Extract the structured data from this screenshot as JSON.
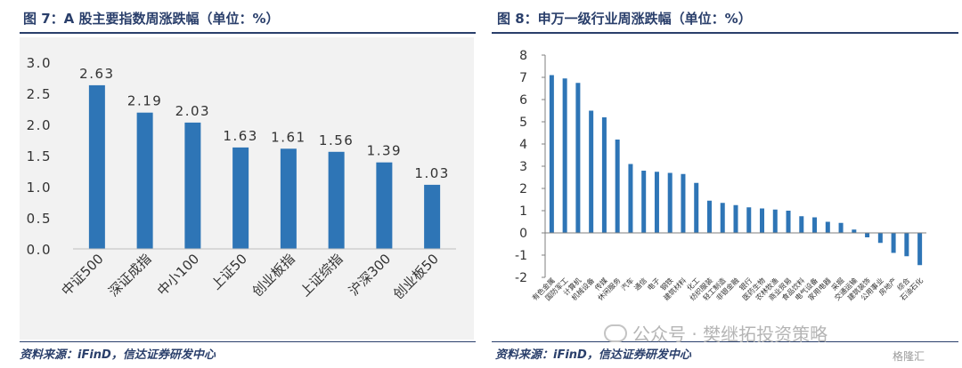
{
  "chart_data": [
    {
      "type": "bar",
      "title": "图 7：A 股主要指数周涨跌幅（单位：%）",
      "categories": [
        "中证500",
        "深证成指",
        "中小100",
        "上证50",
        "创业板指",
        "上证综指",
        "沪深300",
        "创业板50"
      ],
      "values": [
        2.63,
        2.19,
        2.03,
        1.63,
        1.61,
        1.56,
        1.39,
        1.03
      ],
      "value_labels": [
        "2.63",
        "2.19",
        "2.03",
        "1.63",
        "1.61",
        "1.56",
        "1.39",
        "1.03"
      ],
      "ylim": [
        0,
        3.0
      ],
      "yticks": [
        "0.0",
        "0.5",
        "1.0",
        "1.5",
        "2.0",
        "2.5",
        "3.0"
      ],
      "bar_color": "#2e75b6",
      "source": "资料来源：iFinD，信达证券研发中心"
    },
    {
      "type": "bar",
      "title": "图 8：申万一级行业周涨跌幅（单位：%）",
      "categories": [
        "有色金属",
        "国防军工",
        "计算机",
        "机械设备",
        "传媒",
        "休闲服务",
        "汽车",
        "通信",
        "电子",
        "钢铁",
        "建筑材料",
        "化工",
        "纺织服装",
        "轻工制造",
        "非银金融",
        "银行",
        "医药生物",
        "农林牧渔",
        "商业贸易",
        "食品饮料",
        "电气设备",
        "家用电器",
        "采掘",
        "交通运输",
        "建筑装饰",
        "公用事业",
        "房地产",
        "综合",
        "石油石化"
      ],
      "values": [
        7.1,
        6.95,
        6.75,
        5.5,
        5.2,
        4.2,
        3.1,
        2.8,
        2.75,
        2.7,
        2.65,
        2.25,
        1.45,
        1.35,
        1.25,
        1.15,
        1.1,
        1.05,
        1.0,
        0.75,
        0.7,
        0.5,
        0.45,
        0.15,
        -0.2,
        -0.45,
        -0.9,
        -1.05,
        -1.45
      ],
      "ylim": [
        -2,
        8
      ],
      "yticks": [
        "-2",
        "-1",
        "0",
        "1",
        "2",
        "3",
        "4",
        "5",
        "6",
        "7",
        "8"
      ],
      "bar_color": "#2e75b6",
      "source": "资料来源：iFinD，信达证券研发中心"
    }
  ],
  "watermark": {
    "text": "公众号 · 樊继拓投资策略",
    "logo": "格隆汇"
  }
}
